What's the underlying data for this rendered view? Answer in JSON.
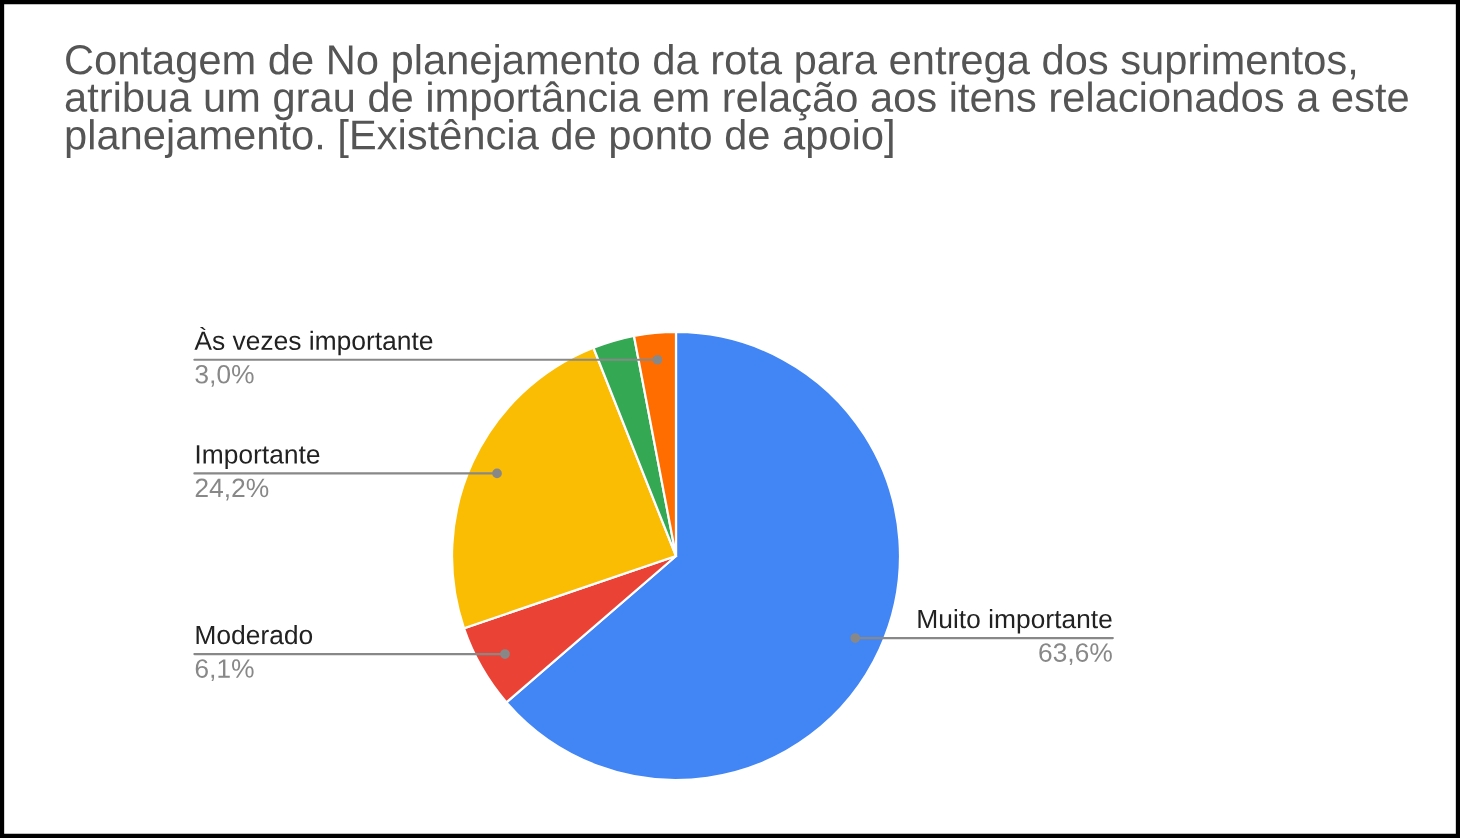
{
  "chart_data": {
    "type": "pie",
    "title": "Contagem de No planejamento da rota para entrega dos suprimentos, atribua um grau de importância em relação aos itens relacionados a este planejamento. [Existência de ponto de apoio]",
    "categories": [
      "Muito importante",
      "Moderado",
      "Importante",
      null,
      "Às vezes importante"
    ],
    "values": [
      63.6,
      6.1,
      24.2,
      3.0,
      3.0
    ],
    "colors": [
      "#4285f4",
      "#ea4335",
      "#fbbc04",
      "#34a853",
      "#ff6d01"
    ],
    "value_labels": [
      "63,6%",
      "6,1%",
      "24,2%",
      null,
      "3,0%"
    ],
    "legend": false
  }
}
